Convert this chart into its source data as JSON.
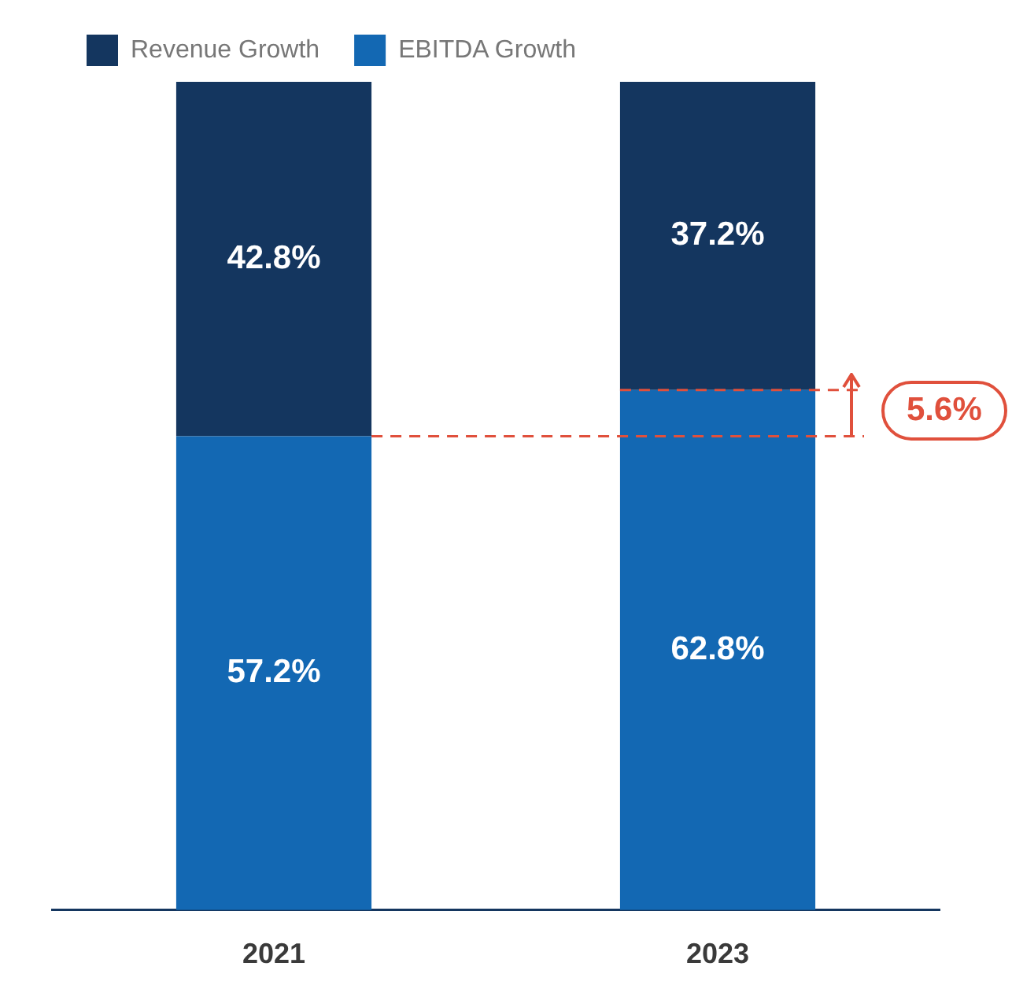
{
  "chart_data": {
    "type": "bar",
    "stacked": true,
    "categories": [
      "2021",
      "2023"
    ],
    "series": [
      {
        "name": "EBITDA Growth",
        "color": "#1368b3",
        "values": [
          57.2,
          62.8
        ],
        "value_labels": [
          "57.2%",
          "62.8%"
        ]
      },
      {
        "name": "Revenue Growth",
        "color": "#14365f",
        "values": [
          42.8,
          37.2
        ],
        "value_labels": [
          "42.8%",
          "37.2%"
        ]
      }
    ],
    "legend": "top left",
    "grid": false,
    "tick_labels": "x",
    "ref_lines": [
      {
        "axis": "y",
        "value": 57.2,
        "color": "#e0503c",
        "line_style": "dashed"
      },
      {
        "axis": "y",
        "value": 62.8,
        "color": "#e0503c",
        "line_style": "dashed"
      }
    ],
    "annotations": [
      "5.6%"
    ]
  }
}
